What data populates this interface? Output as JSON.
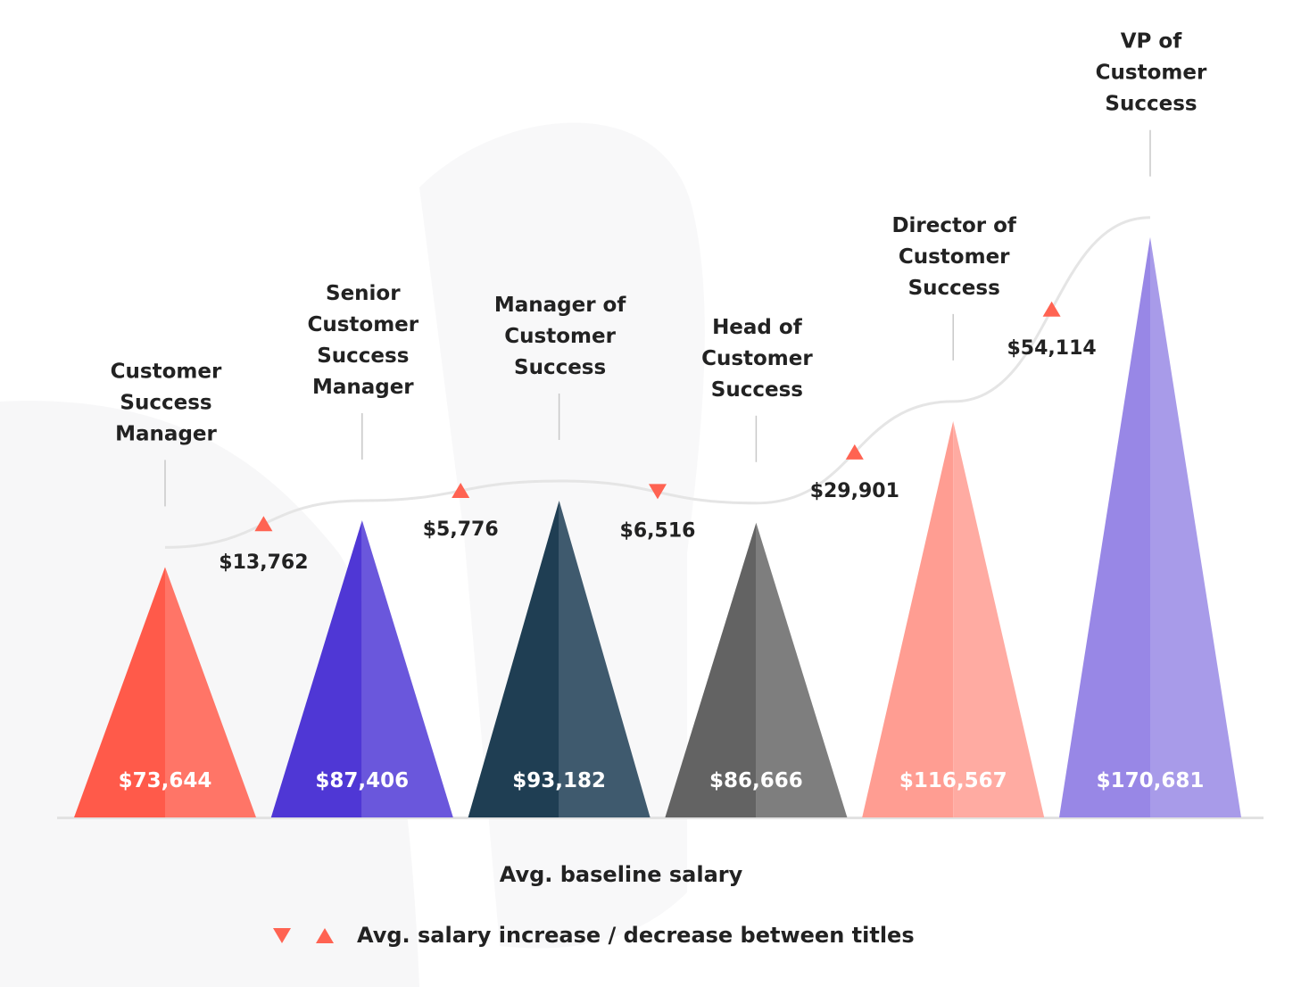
{
  "chart_data": {
    "type": "bar",
    "categories": [
      "Customer Success Manager",
      "Senior Customer Success Manager",
      "Manager of Customer Success",
      "Head of Customer Success",
      "Director of Customer Success",
      "VP of Customer Success"
    ],
    "category_lines": [
      [
        "Customer",
        "Success",
        "Manager"
      ],
      [
        "Senior",
        "Customer",
        "Success",
        "Manager"
      ],
      [
        "Manager of",
        "Customer",
        "Success"
      ],
      [
        "Head of",
        "Customer",
        "Success"
      ],
      [
        "Director of",
        "Customer",
        "Success"
      ],
      [
        "VP of",
        "Customer",
        "Success"
      ]
    ],
    "values": [
      73644,
      87406,
      93182,
      86666,
      116567,
      170681
    ],
    "value_labels": [
      "$73,644",
      "$87,406",
      "$93,182",
      "$86,666",
      "$116,567",
      "$170,681"
    ],
    "changes": [
      {
        "label": "$13,762",
        "direction": "up"
      },
      {
        "label": "$5,776",
        "direction": "up"
      },
      {
        "label": "$6,516",
        "direction": "down"
      },
      {
        "label": "$29,901",
        "direction": "up"
      },
      {
        "label": "$54,114",
        "direction": "up"
      }
    ],
    "colors": [
      [
        "#ff5a4a",
        "#ff7567"
      ],
      [
        "#4f37d5",
        "#6a57dc"
      ],
      [
        "#1f3e53",
        "#3f5a6e"
      ],
      [
        "#636363",
        "#7e7e7e"
      ],
      [
        "#ff9d92",
        "#ffaba2"
      ],
      [
        "#9887e6",
        "#a89be9"
      ]
    ],
    "marker_color": "#ff6352",
    "xlabel": "Avg. baseline salary"
  },
  "legend": {
    "down_icon": "triangle-down",
    "up_icon": "triangle-up",
    "label": "Avg. salary increase / decrease between titles"
  }
}
